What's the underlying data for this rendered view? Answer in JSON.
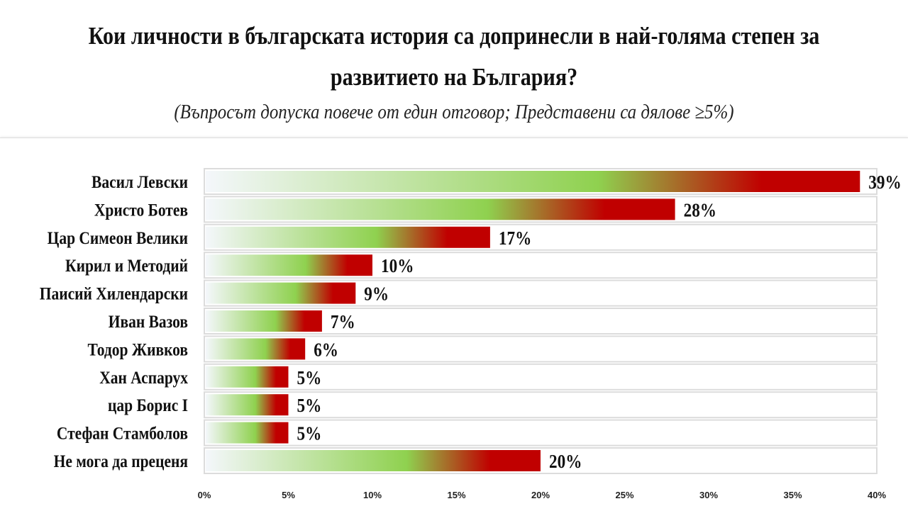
{
  "chart_data": {
    "type": "bar",
    "orientation": "horizontal",
    "title": "Кои личности в българската история са допринесли в най-голяма степен за развитието на България?",
    "subtitle": "(Въпросът допуска повече от един отговор; Представени са дялове ≥5%)",
    "categories": [
      "Васил Левски",
      "Христо Ботев",
      "Цар Симеон Велики",
      "Кирил и Методий",
      "Паисий Хилендарски",
      "Иван Вазов",
      "Тодор Живков",
      "Хан Аспарух",
      "цар Борис I",
      "Стефан Стамболов",
      "Не мога да преценя"
    ],
    "values": [
      39,
      28,
      17,
      10,
      9,
      7,
      6,
      5,
      5,
      5,
      20
    ],
    "value_labels": [
      "39%",
      "28%",
      "17%",
      "10%",
      "9%",
      "7%",
      "6%",
      "5%",
      "5%",
      "5%",
      "20%"
    ],
    "xlim": [
      0,
      40
    ],
    "xticks": [
      "0%",
      "5%",
      "10%",
      "15%",
      "20%",
      "25%",
      "30%",
      "35%",
      "40%"
    ],
    "grid": false,
    "bar_gradient": [
      "#f4f7fb",
      "#8fd14f",
      "#c00000"
    ]
  }
}
